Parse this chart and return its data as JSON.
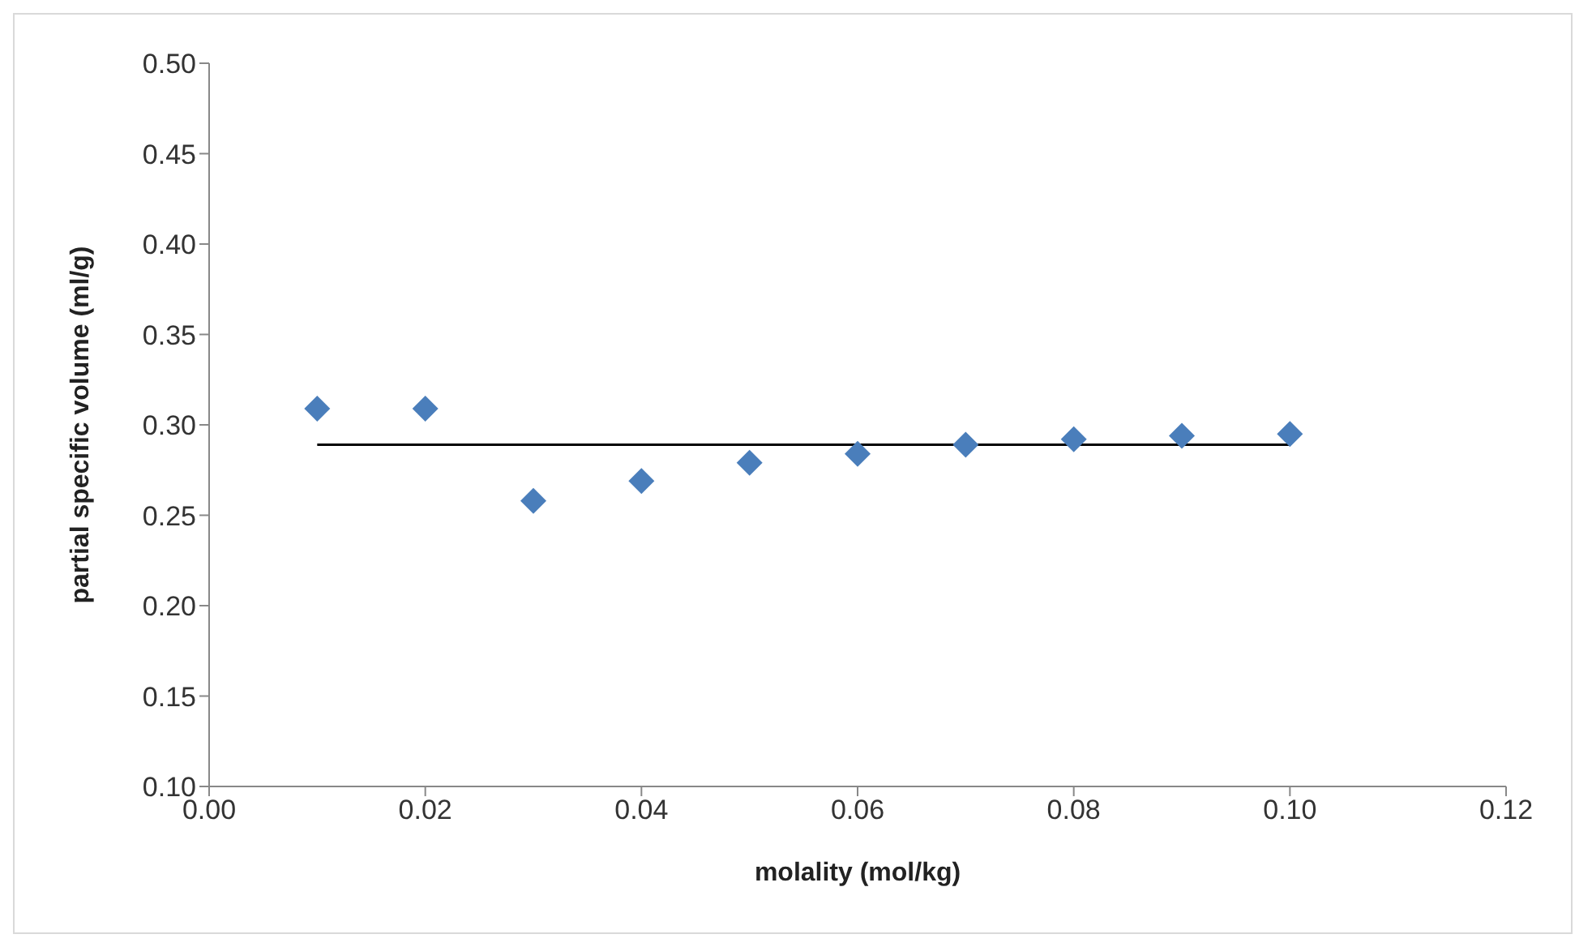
{
  "chart_data": {
    "type": "scatter",
    "xlabel": "molality (mol/kg)",
    "ylabel": "partial specific volume (ml/g)",
    "x": [
      0.01,
      0.02,
      0.03,
      0.04,
      0.05,
      0.06,
      0.07,
      0.08,
      0.09,
      0.1
    ],
    "series": [
      {
        "color": "#4a7ebb",
        "marker": "diamond",
        "values": [
          0.309,
          0.309,
          0.258,
          0.269,
          0.279,
          0.284,
          0.289,
          0.292,
          0.294,
          0.295
        ]
      },
      {
        "type": "line",
        "marker": "none",
        "color": "#000000",
        "x": [
          0.01,
          0.1
        ],
        "values": [
          0.289,
          0.289
        ]
      }
    ],
    "xlim": [
      0,
      0.12
    ],
    "xticks": [
      {
        "value": 0,
        "label": "0.00"
      },
      {
        "value": 0.02,
        "label": "0.02"
      },
      {
        "value": 0.04,
        "label": "0.04"
      },
      {
        "value": 0.06,
        "label": "0.06"
      },
      {
        "value": 0.08,
        "label": "0.08"
      },
      {
        "value": 0.1,
        "label": "0.10"
      },
      {
        "value": 0.12,
        "label": "0.12"
      }
    ],
    "ylim": [
      0.1,
      0.5
    ],
    "yticks": [
      {
        "value": 0.1,
        "label": "0.10"
      },
      {
        "value": 0.15,
        "label": "0.15"
      },
      {
        "value": 0.2,
        "label": "0.20"
      },
      {
        "value": 0.25,
        "label": "0.25"
      },
      {
        "value": 0.3,
        "label": "0.30"
      },
      {
        "value": 0.35,
        "label": "0.35"
      },
      {
        "value": 0.4,
        "label": "0.40"
      },
      {
        "value": 0.45,
        "label": "0.45"
      },
      {
        "value": 0.5,
        "label": "0.50"
      }
    ],
    "grid": false,
    "legend": false
  }
}
